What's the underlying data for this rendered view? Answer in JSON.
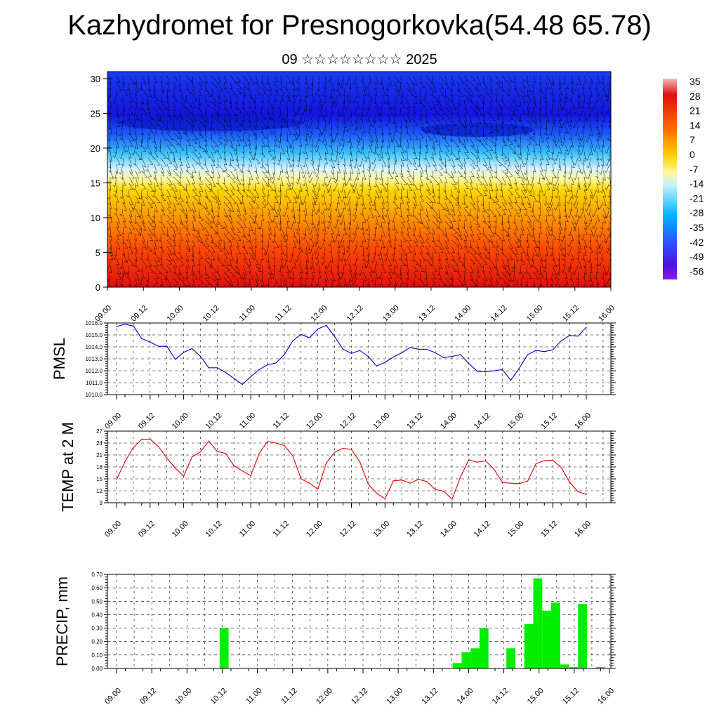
{
  "header": {
    "title": "Kazhydromet for Presnogorkovka(54.48 65.78)",
    "subtitle": "09 ☆☆☆☆☆☆☆☆ 2025"
  },
  "chart_data": [
    {
      "type": "heatmap",
      "name": "temperature-wind-cross-section",
      "x_tick_labels": [
        "09.00",
        "09.12",
        "10.00",
        "10.12",
        "11.00",
        "11.12",
        "12.00",
        "12.12",
        "13.00",
        "13.12",
        "14.00",
        "14.12",
        "15.00",
        "15.12",
        "16.00"
      ],
      "y_ticks": [
        0,
        5,
        10,
        15,
        20,
        25,
        30
      ],
      "ylim": [
        0,
        31
      ],
      "colorbar_labels": [
        "35",
        "28",
        "21",
        "14",
        "7",
        "0",
        "-7",
        "-14",
        "-21",
        "-28",
        "-35",
        "-42",
        "-49",
        "-56"
      ],
      "colorbar_stops": [
        "#f4b8b8",
        "#e01010",
        "#ff6a00",
        "#ffd000",
        "#fff7a0",
        "#c8f0ff",
        "#00b4ff",
        "#3050ff",
        "#5010e0",
        "#8a20e0"
      ],
      "overlay": "wind-barbs"
    },
    {
      "type": "line",
      "ylabel": "PMSL",
      "ylim": [
        1010.0,
        1016.0
      ],
      "y_tick_labels": [
        "1010.0",
        "1011.0",
        "1012.0",
        "1013.0",
        "1014.0",
        "1015.0",
        "1016.0"
      ],
      "x_tick_labels": [
        "09.00",
        "09.12",
        "10.00",
        "10.12",
        "11.00",
        "11.12",
        "12.00",
        "12.12",
        "13.00",
        "13.12",
        "14.00",
        "14.12",
        "15.00",
        "15.12",
        "16.00"
      ],
      "color": "#0000cc",
      "values": [
        1015.7,
        1015.9,
        1015.75,
        1014.7,
        1014.4,
        1014.05,
        1014.05,
        1012.95,
        1013.55,
        1013.85,
        1013.2,
        1012.25,
        1012.25,
        1011.85,
        1011.35,
        1010.85,
        1011.5,
        1012.1,
        1012.5,
        1012.65,
        1013.35,
        1014.5,
        1015.05,
        1014.75,
        1015.5,
        1015.8,
        1014.85,
        1013.8,
        1013.45,
        1013.7,
        1013.2,
        1012.4,
        1012.7,
        1013.15,
        1013.5,
        1013.95,
        1013.8,
        1013.8,
        1013.5,
        1013.1,
        1013.2,
        1013.35,
        1012.6,
        1011.95,
        1011.9,
        1012.0,
        1012.1,
        1011.2,
        1012.2,
        1013.35,
        1013.7,
        1013.6,
        1013.75,
        1014.5,
        1014.95,
        1014.9,
        1015.65
      ]
    },
    {
      "type": "line",
      "ylabel": "TEMP at 2 M",
      "ylim": [
        9,
        27
      ],
      "y_tick_labels": [
        "9",
        "12",
        "15",
        "18",
        "21",
        "24",
        "27"
      ],
      "x_tick_labels": [
        "09.00",
        "09.12",
        "10.00",
        "10.12",
        "11.00",
        "11.12",
        "12.00",
        "12.12",
        "13.00",
        "13.12",
        "14.00",
        "14.12",
        "15.00",
        "15.12",
        "16.00"
      ],
      "color": "#dd0000",
      "values": [
        14.8,
        19.3,
        22.9,
        24.9,
        25.0,
        23.1,
        20.2,
        17.7,
        15.7,
        20.5,
        21.8,
        24.5,
        21.9,
        21.4,
        18.3,
        17.0,
        15.8,
        21.4,
        24.4,
        24.0,
        23.4,
        20.8,
        15.0,
        13.9,
        12.4,
        19.0,
        21.7,
        22.7,
        22.4,
        19.3,
        13.7,
        11.4,
        10.0,
        14.5,
        14.7,
        13.9,
        14.9,
        14.3,
        12.3,
        11.9,
        9.9,
        15.5,
        19.8,
        19.2,
        19.5,
        17.4,
        14.1,
        13.9,
        13.8,
        14.4,
        18.8,
        19.6,
        19.7,
        17.9,
        14.2,
        11.8,
        11.1
      ]
    },
    {
      "type": "bar",
      "ylabel": "PRECIP, mm",
      "ylim": [
        0,
        0.7
      ],
      "y_tick_labels": [
        "0.00",
        "0.10",
        "0.20",
        "0.30",
        "0.40",
        "0.50",
        "0.60",
        "0.70"
      ],
      "x_tick_labels": [
        "09.00",
        "09.12",
        "10.00",
        "10.12",
        "11.00",
        "11.12",
        "12.00",
        "12.12",
        "13.00",
        "13.12",
        "14.00",
        "14.12",
        "15.00",
        "15.12",
        "16.00"
      ],
      "color": "#00ee00",
      "values": [
        0,
        0,
        0,
        0,
        0,
        0,
        0,
        0,
        0,
        0,
        0,
        0,
        0.3,
        0,
        0,
        0,
        0,
        0,
        0,
        0,
        0,
        0,
        0,
        0,
        0,
        0,
        0,
        0,
        0,
        0,
        0,
        0,
        0,
        0,
        0,
        0,
        0,
        0,
        0.04,
        0.12,
        0.15,
        0.3,
        0,
        0,
        0.15,
        0,
        0.33,
        0.67,
        0.43,
        0.49,
        0.03,
        0.01,
        0.48,
        0,
        0.01,
        0
      ]
    }
  ]
}
